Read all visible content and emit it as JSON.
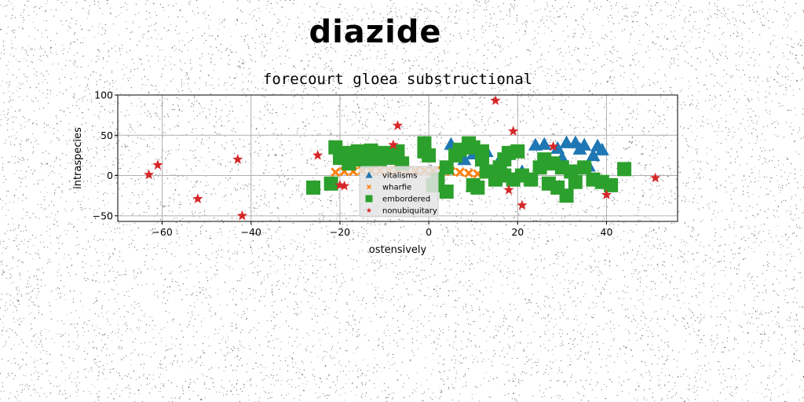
{
  "page": {
    "title": "diazide"
  },
  "chart_data": {
    "type": "scatter",
    "title": "forecourt gloea substructional",
    "xlabel": "ostensively",
    "ylabel": "intraspecies",
    "xlim": [
      -70,
      56
    ],
    "ylim": [
      -57,
      100
    ],
    "xticks": [
      -60,
      -40,
      -20,
      0,
      20,
      40
    ],
    "yticks": [
      -50,
      0,
      50,
      100
    ],
    "grid": true,
    "legend_position": "center",
    "series": [
      {
        "name": "vitalisms",
        "marker": "triangle",
        "color": "#1f77b4",
        "points": [
          [
            5,
            39
          ],
          [
            8,
            20
          ],
          [
            10,
            27
          ],
          [
            13,
            30
          ],
          [
            16,
            20
          ],
          [
            21,
            5
          ],
          [
            24,
            38
          ],
          [
            26,
            39
          ],
          [
            29,
            34
          ],
          [
            31,
            41
          ],
          [
            33,
            41
          ],
          [
            34,
            33
          ],
          [
            35,
            38
          ],
          [
            36,
            12
          ],
          [
            37,
            25
          ],
          [
            38,
            37
          ],
          [
            39,
            32
          ],
          [
            30,
            22
          ]
        ]
      },
      {
        "name": "wharfie",
        "marker": "x",
        "color": "#ff7f0e",
        "points": [
          [
            -21,
            4
          ],
          [
            -19,
            5
          ],
          [
            -17,
            5
          ],
          [
            -15,
            6
          ],
          [
            -13,
            6
          ],
          [
            -11,
            6
          ],
          [
            -9,
            6
          ],
          [
            -7,
            7
          ],
          [
            -5,
            6
          ],
          [
            -3,
            6
          ],
          [
            -1,
            6
          ],
          [
            1,
            6
          ],
          [
            3,
            6
          ],
          [
            5,
            5
          ],
          [
            7,
            4
          ],
          [
            9,
            3
          ],
          [
            11,
            2
          ],
          [
            13,
            1
          ],
          [
            15,
            0
          ],
          [
            17,
            0
          ],
          [
            19,
            0
          ]
        ]
      },
      {
        "name": "embordered",
        "marker": "square",
        "color": "#2ca02c",
        "points": [
          [
            -26,
            -15
          ],
          [
            -22,
            -10
          ],
          [
            -21,
            35
          ],
          [
            -20,
            22
          ],
          [
            -19,
            28
          ],
          [
            -18,
            15
          ],
          [
            -17,
            20
          ],
          [
            -16,
            30
          ],
          [
            -15,
            25
          ],
          [
            -14,
            18
          ],
          [
            -13,
            31
          ],
          [
            -12,
            28
          ],
          [
            -11,
            20
          ],
          [
            -10,
            25
          ],
          [
            -9,
            28
          ],
          [
            -8,
            22
          ],
          [
            -7,
            30
          ],
          [
            -6,
            15
          ],
          [
            -1,
            40
          ],
          [
            -1,
            30
          ],
          [
            0,
            25
          ],
          [
            1,
            -12
          ],
          [
            2,
            -5
          ],
          [
            4,
            10
          ],
          [
            4,
            -20
          ],
          [
            6,
            25
          ],
          [
            7,
            32
          ],
          [
            9,
            40
          ],
          [
            10,
            35
          ],
          [
            10,
            -12
          ],
          [
            11,
            -15
          ],
          [
            12,
            30
          ],
          [
            12,
            20
          ],
          [
            13,
            5
          ],
          [
            15,
            -5
          ],
          [
            16,
            10
          ],
          [
            17,
            20
          ],
          [
            17,
            0
          ],
          [
            18,
            28
          ],
          [
            19,
            -5
          ],
          [
            20,
            30
          ],
          [
            21,
            0
          ],
          [
            23,
            -5
          ],
          [
            25,
            10
          ],
          [
            26,
            20
          ],
          [
            27,
            -10
          ],
          [
            28,
            15
          ],
          [
            29,
            -15
          ],
          [
            30,
            10
          ],
          [
            31,
            -25
          ],
          [
            32,
            5
          ],
          [
            33,
            -8
          ],
          [
            35,
            10
          ],
          [
            37,
            -5
          ],
          [
            39,
            -8
          ],
          [
            41,
            -12
          ],
          [
            44,
            8
          ]
        ]
      },
      {
        "name": "nonubiquitary",
        "marker": "star",
        "color": "#d62728",
        "points": [
          [
            -63,
            1
          ],
          [
            -61,
            13
          ],
          [
            -52,
            -29
          ],
          [
            -43,
            20
          ],
          [
            -42,
            -50
          ],
          [
            -25,
            25
          ],
          [
            -20,
            -12
          ],
          [
            -19,
            -13
          ],
          [
            -8,
            38
          ],
          [
            -7,
            62
          ],
          [
            15,
            93
          ],
          [
            18,
            -18
          ],
          [
            19,
            55
          ],
          [
            21,
            -37
          ],
          [
            28,
            36
          ],
          [
            40,
            -24
          ],
          [
            51,
            -3
          ]
        ]
      }
    ]
  }
}
